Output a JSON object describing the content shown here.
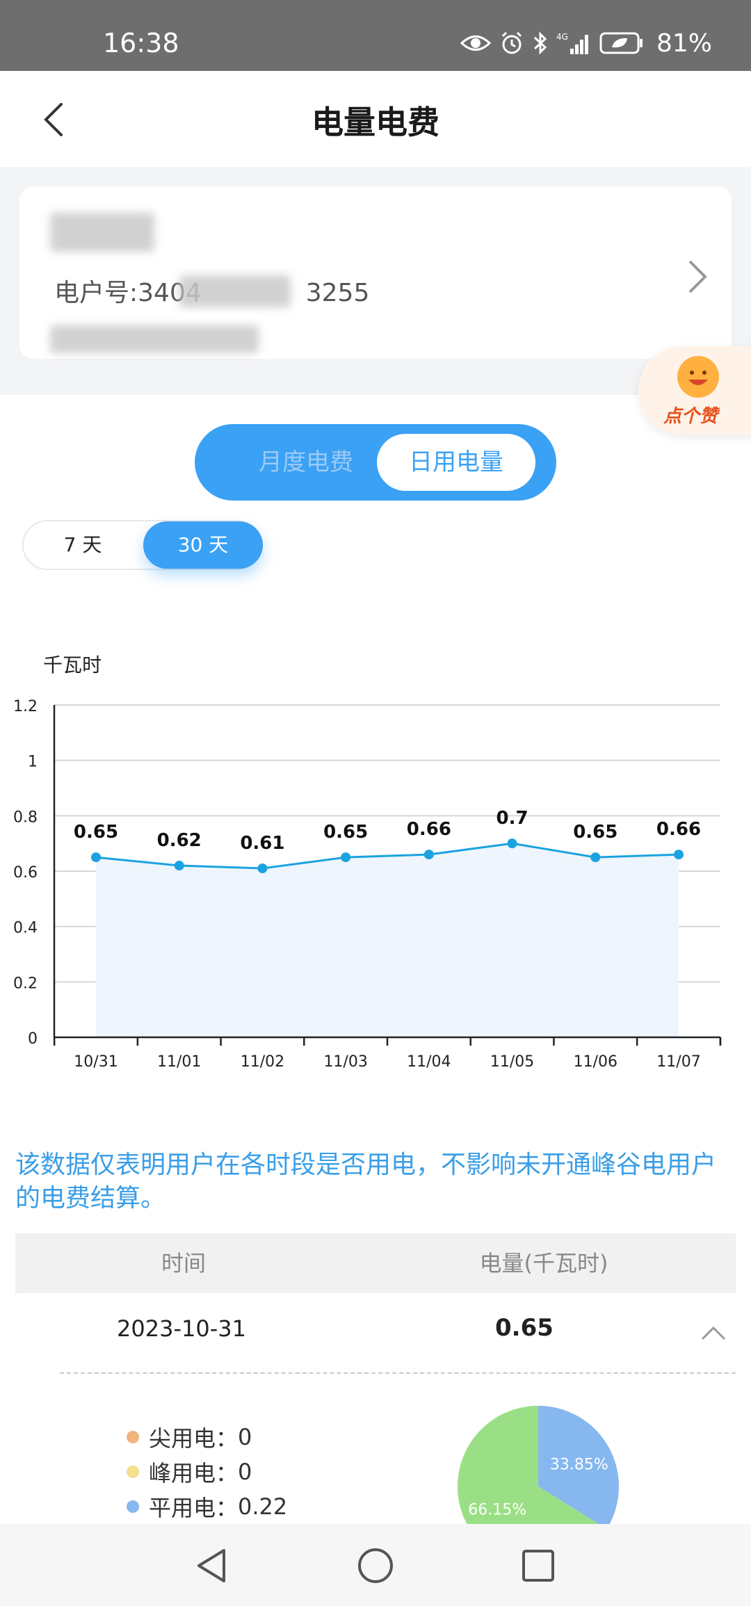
{
  "status_bar": {
    "time": "16:38",
    "battery": "81%"
  },
  "nav": {
    "title": "电量电费"
  },
  "account": {
    "account_number": "电户号:3404",
    "account_number_tail": "3255"
  },
  "like_button": {
    "label": "点个赞"
  },
  "tabs": {
    "monthly": "月度电费",
    "daily": "日用电量",
    "selected": "日用电量"
  },
  "range": {
    "d7": "7 天",
    "d30": "30 天",
    "selected": "30 天"
  },
  "chart_data": {
    "type": "line",
    "ylabel": "千瓦时",
    "categories": [
      "10/31",
      "11/01",
      "11/02",
      "11/03",
      "11/04",
      "11/05",
      "11/06",
      "11/07"
    ],
    "values": [
      0.65,
      0.62,
      0.61,
      0.65,
      0.66,
      0.7,
      0.65,
      0.66
    ],
    "data_labels": [
      "0.65",
      "0.62",
      "0.61",
      "0.65",
      "0.66",
      "0.7",
      "0.65",
      "0.66"
    ],
    "yticks": [
      "0",
      "0.2",
      "0.4",
      "0.6",
      "0.8",
      "1",
      "1.2"
    ],
    "ylim": [
      0,
      1.2
    ],
    "grid": true,
    "area_fill": true,
    "colors": {
      "line": "#1aa3e0",
      "area": "#eef5fd",
      "grid": "#d6d6d6"
    }
  },
  "note": "该数据仅表明用户在各时段是否用电，不影响未开通峰谷电用户的电费结算。",
  "table": {
    "headers": [
      "时间",
      "电量(千瓦时)"
    ],
    "rows": [
      {
        "date": "2023-10-31",
        "value": "0.65"
      }
    ]
  },
  "breakdown": {
    "items": [
      {
        "label": "尖用电：",
        "value": "0",
        "color": "#f0b47e"
      },
      {
        "label": "峰用电：",
        "value": "0",
        "color": "#f3e08a"
      },
      {
        "label": "平用电：",
        "value": "0.22",
        "color": "#86b7ef"
      }
    ],
    "pie": [
      {
        "label": "33.85%",
        "value": 33.85,
        "color": "#86b7ef"
      },
      {
        "label": "66.15%",
        "value": 66.15,
        "color": "#9adf85"
      }
    ]
  }
}
